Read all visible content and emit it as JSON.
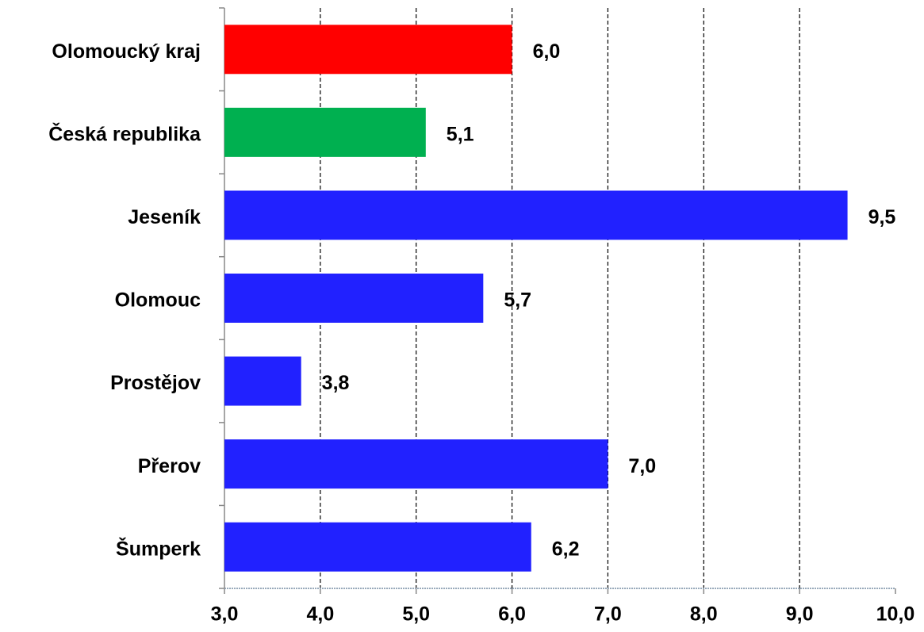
{
  "chart_data": {
    "type": "hbar",
    "categories": [
      "Olomoucký kraj",
      "Česká republika",
      "Jeseník",
      "Olomouc",
      "Prostějov",
      "Přerov",
      "Šumperk"
    ],
    "values": [
      6.0,
      5.1,
      9.5,
      5.7,
      3.8,
      7.0,
      6.2
    ],
    "value_labels": [
      "6,0",
      "5,1",
      "9,5",
      "5,7",
      "3,8",
      "7,0",
      "6,2"
    ],
    "colors": [
      "#ff0000",
      "#00b050",
      "#2121ff",
      "#2121ff",
      "#2121ff",
      "#2121ff",
      "#2121ff"
    ],
    "xlim": [
      3,
      10
    ],
    "xticks": [
      {
        "value": 3,
        "label": "3,0"
      },
      {
        "value": 4,
        "label": "4,0"
      },
      {
        "value": 5,
        "label": "5,0"
      },
      {
        "value": 6,
        "label": "6,0"
      },
      {
        "value": 7,
        "label": "7,0"
      },
      {
        "value": 8,
        "label": "8,0"
      },
      {
        "value": 9,
        "label": "9,0"
      },
      {
        "value": 10,
        "label": "10,0"
      }
    ],
    "grid": true
  }
}
